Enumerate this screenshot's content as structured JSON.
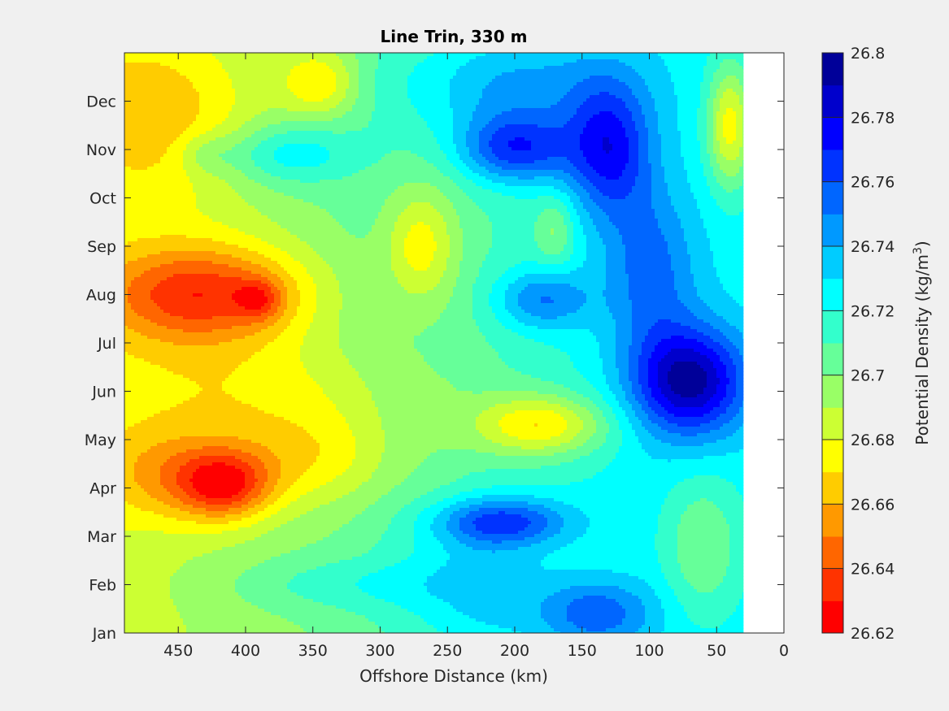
{
  "chart_data": {
    "type": "heatmap",
    "subtype": "filled-contour",
    "title": "Line Trin, 330 m",
    "xlabel": "Offshore Distance (km)",
    "colorbar_label": "Potential Density (kg/m",
    "colorbar_label_superscript": "3",
    "colorbar_label_suffix": ")",
    "xlim": [
      490,
      0
    ],
    "x_reversed": true,
    "xticks": [
      450,
      400,
      350,
      300,
      250,
      200,
      150,
      100,
      50,
      0
    ],
    "ylim": [
      1,
      13
    ],
    "yticks": [
      1,
      2,
      3,
      4,
      5,
      6,
      7,
      8,
      9,
      10,
      11,
      12
    ],
    "ytick_labels": [
      "Jan",
      "Feb",
      "Mar",
      "Apr",
      "May",
      "Jun",
      "Jul",
      "Aug",
      "Sep",
      "Oct",
      "Nov",
      "Dec"
    ],
    "data_extent_x": [
      30,
      490
    ],
    "colormap": "jet",
    "clim": [
      26.62,
      26.8
    ],
    "levels": [
      26.62,
      26.63,
      26.64,
      26.65,
      26.66,
      26.67,
      26.68,
      26.69,
      26.7,
      26.71,
      26.72,
      26.73,
      26.74,
      26.75,
      26.76,
      26.77,
      26.78,
      26.79,
      26.8
    ],
    "colorbar_ticks": [
      26.62,
      26.64,
      26.66,
      26.68,
      26.7,
      26.72,
      26.74,
      26.76,
      26.78,
      26.8
    ],
    "colorbar_tick_labels": [
      "26.62",
      "26.64",
      "26.66",
      "26.68",
      "26.7",
      "26.72",
      "26.74",
      "26.76",
      "26.78",
      "26.8"
    ],
    "colors": [
      "#ff0000",
      "#ff3300",
      "#ff6600",
      "#ff9900",
      "#ffcc00",
      "#ffff00",
      "#ccff33",
      "#99ff66",
      "#66ff99",
      "#33ffcc",
      "#00ffff",
      "#00ccff",
      "#0099ff",
      "#0066ff",
      "#0033ff",
      "#0000ff",
      "#0000cc",
      "#000099"
    ],
    "field": {
      "base": 26.705,
      "x_gradient": [
        [
          490,
          -0.02
        ],
        [
          300,
          0.0
        ],
        [
          250,
          0.0
        ],
        [
          150,
          0.015
        ],
        [
          100,
          0.02
        ],
        [
          30,
          0.02
        ]
      ],
      "features": [
        {
          "x": 430,
          "y": 8.0,
          "sx": 55,
          "sy": 0.75,
          "a": -0.06
        },
        {
          "x": 390,
          "y": 7.9,
          "sx": 12,
          "sy": 0.3,
          "a": -0.025
        },
        {
          "x": 415,
          "y": 4.05,
          "sx": 25,
          "sy": 0.5,
          "a": -0.05
        },
        {
          "x": 455,
          "y": 4.3,
          "sx": 40,
          "sy": 0.7,
          "a": -0.03
        },
        {
          "x": 350,
          "y": 4.6,
          "sx": 45,
          "sy": 0.7,
          "a": -0.025
        },
        {
          "x": 180,
          "y": 5.3,
          "sx": 35,
          "sy": 0.45,
          "a": -0.045
        },
        {
          "x": 270,
          "y": 9.0,
          "sx": 18,
          "sy": 0.8,
          "a": -0.03
        },
        {
          "x": 460,
          "y": 11.7,
          "sx": 50,
          "sy": 1.3,
          "a": -0.025
        },
        {
          "x": 345,
          "y": 12.4,
          "sx": 20,
          "sy": 0.5,
          "a": -0.03
        },
        {
          "x": 40,
          "y": 11.5,
          "sx": 12,
          "sy": 0.9,
          "a": -0.05
        },
        {
          "x": 390,
          "y": 6.0,
          "sx": 80,
          "sy": 0.8,
          "a": -0.02
        },
        {
          "x": 370,
          "y": 10.9,
          "sx": 35,
          "sy": 0.45,
          "a": 0.03
        },
        {
          "x": 430,
          "y": 10.9,
          "sx": 14,
          "sy": 0.3,
          "a": 0.015
        },
        {
          "x": 200,
          "y": 11.0,
          "sx": 30,
          "sy": 0.5,
          "a": 0.05
        },
        {
          "x": 210,
          "y": 12.3,
          "sx": 60,
          "sy": 0.8,
          "a": 0.03
        },
        {
          "x": 130,
          "y": 11.0,
          "sx": 22,
          "sy": 1.0,
          "a": 0.05
        },
        {
          "x": 70,
          "y": 6.2,
          "sx": 30,
          "sy": 0.8,
          "a": 0.07
        },
        {
          "x": 100,
          "y": 8.5,
          "sx": 25,
          "sy": 1.2,
          "a": 0.03
        },
        {
          "x": 180,
          "y": 7.9,
          "sx": 25,
          "sy": 0.45,
          "a": 0.035
        },
        {
          "x": 210,
          "y": 3.3,
          "sx": 35,
          "sy": 0.35,
          "a": 0.045
        },
        {
          "x": 230,
          "y": 2.0,
          "sx": 40,
          "sy": 1.2,
          "a": 0.025
        },
        {
          "x": 140,
          "y": 1.4,
          "sx": 30,
          "sy": 0.5,
          "a": 0.035
        },
        {
          "x": 60,
          "y": 2.8,
          "sx": 20,
          "sy": 1.0,
          "a": -0.025
        },
        {
          "x": 170,
          "y": 9.3,
          "sx": 10,
          "sy": 0.5,
          "a": -0.02
        },
        {
          "x": 330,
          "y": 2.0,
          "sx": 60,
          "sy": 0.4,
          "a": 0.015
        }
      ]
    }
  }
}
